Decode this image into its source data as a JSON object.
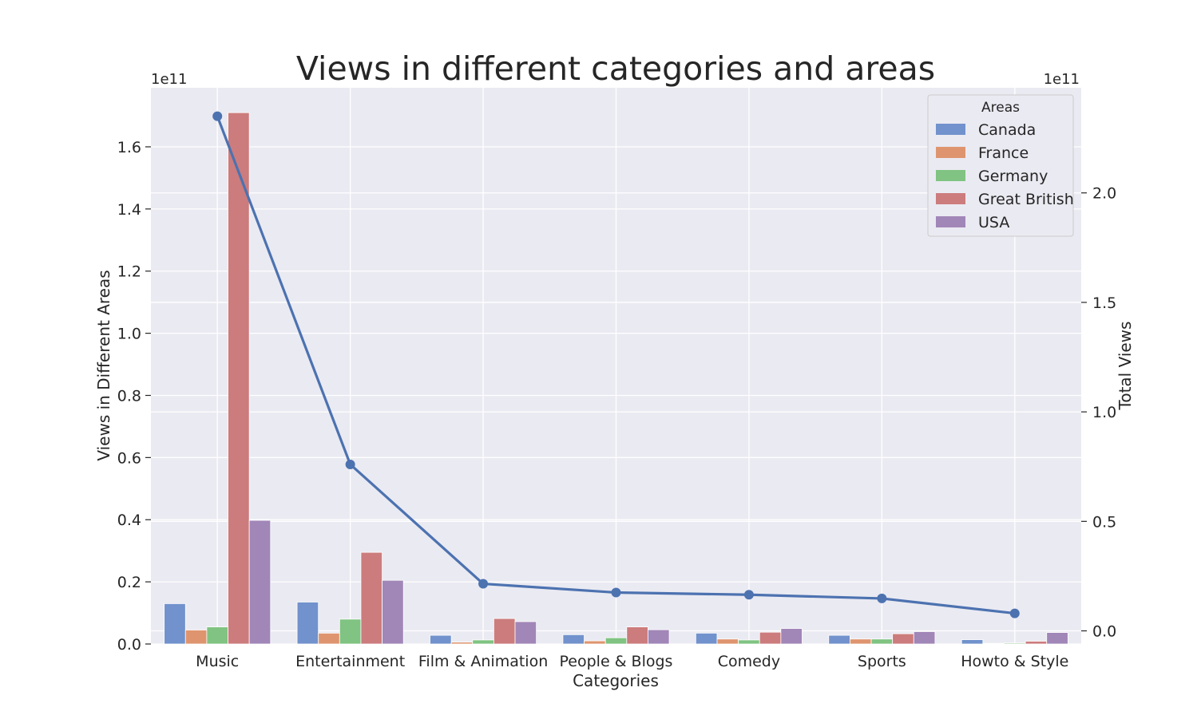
{
  "chart_data": {
    "type": "bar",
    "title": "Views in different categories and areas",
    "xlabel": "Categories",
    "ylabel": "Views in Different Areas",
    "y2label": "Total Views",
    "y_offset_label": "1e11",
    "y2_offset_label": "1e11",
    "categories": [
      "Music",
      "Entertainment",
      "Film & Animation",
      "People & Blogs",
      "Comedy",
      "Sports",
      "Howto & Style"
    ],
    "ylim": [
      0,
      1.79
    ],
    "y2lim": [
      -0.06,
      2.48
    ],
    "yticks": [
      0.0,
      0.2,
      0.4,
      0.6,
      0.8,
      1.0,
      1.2,
      1.4,
      1.6
    ],
    "ytick_labels": [
      "0.0",
      "0.2",
      "0.4",
      "0.6",
      "0.8",
      "1.0",
      "1.2",
      "1.4",
      "1.6"
    ],
    "y2ticks": [
      0.0,
      0.5,
      1.0,
      1.5,
      2.0
    ],
    "y2tick_labels": [
      "0.0",
      "0.5",
      "1.0",
      "1.5",
      "2.0"
    ],
    "grid": true,
    "legend": {
      "title": "Areas",
      "placement": "top-right"
    },
    "series": [
      {
        "name": "Canada",
        "color": "#7192cc",
        "values": [
          0.13,
          0.135,
          0.028,
          0.03,
          0.035,
          0.028,
          0.014
        ]
      },
      {
        "name": "France",
        "color": "#de956f",
        "values": [
          0.045,
          0.035,
          0.006,
          0.01,
          0.016,
          0.016,
          0.002
        ]
      },
      {
        "name": "Germany",
        "color": "#80c382",
        "values": [
          0.055,
          0.08,
          0.013,
          0.02,
          0.013,
          0.016,
          0.003
        ]
      },
      {
        "name": "Great British",
        "color": "#cc7c7d",
        "values": [
          1.71,
          0.295,
          0.082,
          0.055,
          0.038,
          0.033,
          0.009
        ]
      },
      {
        "name": "USA",
        "color": "#a186b8",
        "values": [
          0.398,
          0.205,
          0.072,
          0.046,
          0.05,
          0.04,
          0.037
        ]
      }
    ],
    "line_series": {
      "name": "Total Views",
      "color": "#4c72b0",
      "values": [
        2.35,
        0.76,
        0.215,
        0.175,
        0.165,
        0.148,
        0.08
      ]
    }
  }
}
